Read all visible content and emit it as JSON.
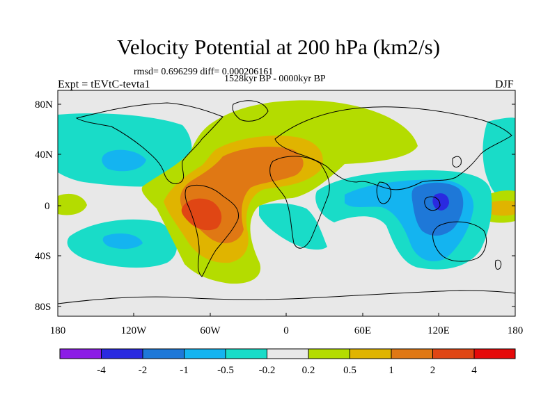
{
  "title": "Velocity Potential at 200 hPa (km2/s)",
  "stats": "rmsd= 0.696299 diff= 0.000206161",
  "period": "1528kyr BP - 0000kyr BP",
  "experiment": "Expt = tEVtC-tevta1",
  "season": "DJF",
  "y_axis_labels": [
    "80N",
    "40N",
    "0",
    "40S",
    "80S"
  ],
  "x_axis_labels": [
    "180",
    "120W",
    "60W",
    "0",
    "60E",
    "120E",
    "180"
  ],
  "colorbar": {
    "labels": [
      "-4",
      "-2",
      "-1",
      "-0.5",
      "-0.2",
      "0.2",
      "0.5",
      "1",
      "2",
      "4"
    ],
    "colors": [
      "#8C1CE6",
      "#2A2AE0",
      "#1E78D8",
      "#14B4F0",
      "#19DCC8",
      "#E8E8E8",
      "#B4DC00",
      "#E0B400",
      "#E07814",
      "#E04614",
      "#E60A0A"
    ]
  },
  "palette": {
    "neutral": "#E8E8E8",
    "pos1": "#B4DC00",
    "pos2": "#E0B400",
    "pos3": "#E07814",
    "pos4": "#E04614",
    "neg1": "#19DCC8",
    "neg2": "#14B4F0",
    "neg3": "#1E78D8",
    "neg4": "#2A2AE0"
  }
}
